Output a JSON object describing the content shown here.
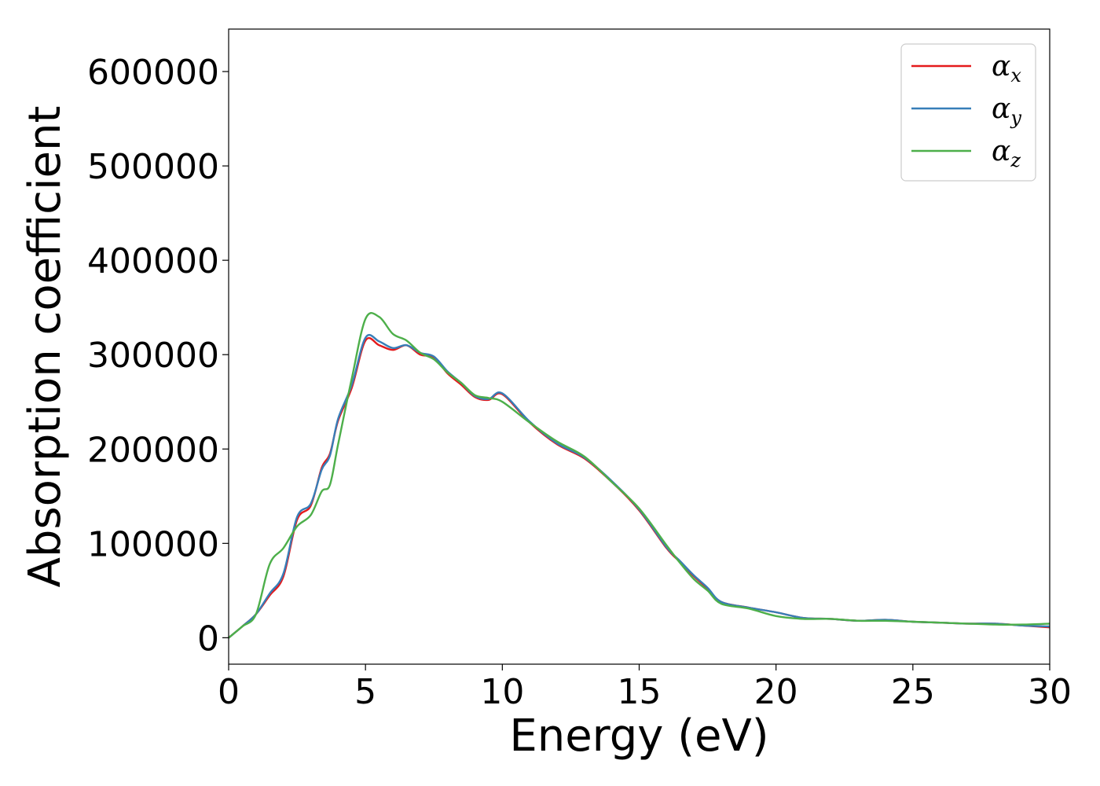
{
  "chart_data": {
    "type": "line",
    "title": "",
    "xlabel": "Energy (eV)",
    "ylabel": "Absorption coefficient",
    "xlim": [
      0,
      30
    ],
    "ylim": [
      -28000,
      645000
    ],
    "xticks": [
      0,
      5,
      10,
      15,
      20,
      25,
      30
    ],
    "xtick_labels": [
      "0",
      "5",
      "10",
      "15",
      "20",
      "25",
      "30"
    ],
    "yticks": [
      0,
      100000,
      200000,
      300000,
      400000,
      500000,
      600000
    ],
    "ytick_labels": [
      "0",
      "100000",
      "200000",
      "300000",
      "400000",
      "500000",
      "600000"
    ],
    "grid": false,
    "legend_position": "top-right",
    "series": [
      {
        "name": "α",
        "subscript": "x",
        "color": "#e41a1c",
        "x": [
          0,
          0.5,
          1.0,
          1.5,
          2.0,
          2.5,
          3.0,
          3.4,
          3.7,
          4.0,
          4.5,
          5.0,
          5.5,
          6.0,
          6.5,
          7.0,
          7.5,
          8.0,
          8.5,
          9.0,
          9.5,
          10.0,
          11.0,
          12.0,
          13.0,
          14.0,
          15.0,
          16.0,
          16.5,
          17.0,
          17.5,
          18.0,
          19.0,
          20.0,
          21.0,
          22.0,
          23.0,
          24.0,
          25.0,
          26.0,
          27.0,
          28.0,
          29.0,
          30.0
        ],
        "values": [
          0,
          12000,
          25000,
          45000,
          65000,
          125000,
          140000,
          180000,
          195000,
          230000,
          265000,
          315000,
          310000,
          305000,
          310000,
          300000,
          297000,
          280000,
          268000,
          255000,
          252000,
          258000,
          228000,
          205000,
          190000,
          165000,
          135000,
          95000,
          80000,
          65000,
          52000,
          38000,
          32000,
          27000,
          21000,
          20000,
          18000,
          19000,
          17000,
          16000,
          15000,
          15000,
          13000,
          11000
        ]
      },
      {
        "name": "α",
        "subscript": "y",
        "color": "#377eb8",
        "x": [
          0,
          0.5,
          1.0,
          1.5,
          2.0,
          2.5,
          3.0,
          3.4,
          3.7,
          4.0,
          4.5,
          5.0,
          5.5,
          6.0,
          6.5,
          7.0,
          7.5,
          8.0,
          8.5,
          9.0,
          9.5,
          10.0,
          11.0,
          12.0,
          13.0,
          14.0,
          15.0,
          16.0,
          16.5,
          17.0,
          17.5,
          18.0,
          19.0,
          20.0,
          21.0,
          22.0,
          23.0,
          24.0,
          25.0,
          26.0,
          27.0,
          28.0,
          29.0,
          30.0
        ],
        "values": [
          0,
          12000,
          25000,
          47000,
          68000,
          128000,
          142000,
          178000,
          193000,
          232000,
          268000,
          318000,
          314000,
          307000,
          310000,
          302000,
          298000,
          282000,
          270000,
          256000,
          253000,
          259000,
          229000,
          206000,
          191000,
          166000,
          136000,
          96000,
          81000,
          66000,
          53000,
          38000,
          32000,
          27000,
          21000,
          20000,
          18000,
          19000,
          17000,
          16000,
          15000,
          15000,
          13000,
          12000
        ]
      },
      {
        "name": "α",
        "subscript": "z",
        "color": "#4daf4a",
        "x": [
          0,
          0.5,
          1.0,
          1.5,
          2.0,
          2.5,
          3.0,
          3.4,
          3.7,
          4.0,
          4.5,
          5.0,
          5.5,
          6.0,
          6.5,
          7.0,
          7.5,
          8.0,
          8.5,
          9.0,
          9.5,
          10.0,
          11.0,
          12.0,
          13.0,
          14.0,
          15.0,
          16.0,
          16.5,
          17.0,
          17.5,
          18.0,
          19.0,
          20.0,
          21.0,
          22.0,
          23.0,
          24.0,
          25.0,
          26.0,
          27.0,
          28.0,
          29.0,
          30.0
        ],
        "values": [
          0,
          12000,
          25000,
          78000,
          95000,
          118000,
          130000,
          155000,
          162000,
          205000,
          275000,
          338000,
          340000,
          322000,
          315000,
          302000,
          295000,
          281000,
          270000,
          257000,
          254000,
          250000,
          228000,
          208000,
          192000,
          165000,
          137000,
          98000,
          79000,
          62000,
          50000,
          36000,
          31000,
          23000,
          20000,
          20000,
          18000,
          18000,
          17000,
          16000,
          15000,
          14000,
          14000,
          15000
        ]
      }
    ]
  }
}
